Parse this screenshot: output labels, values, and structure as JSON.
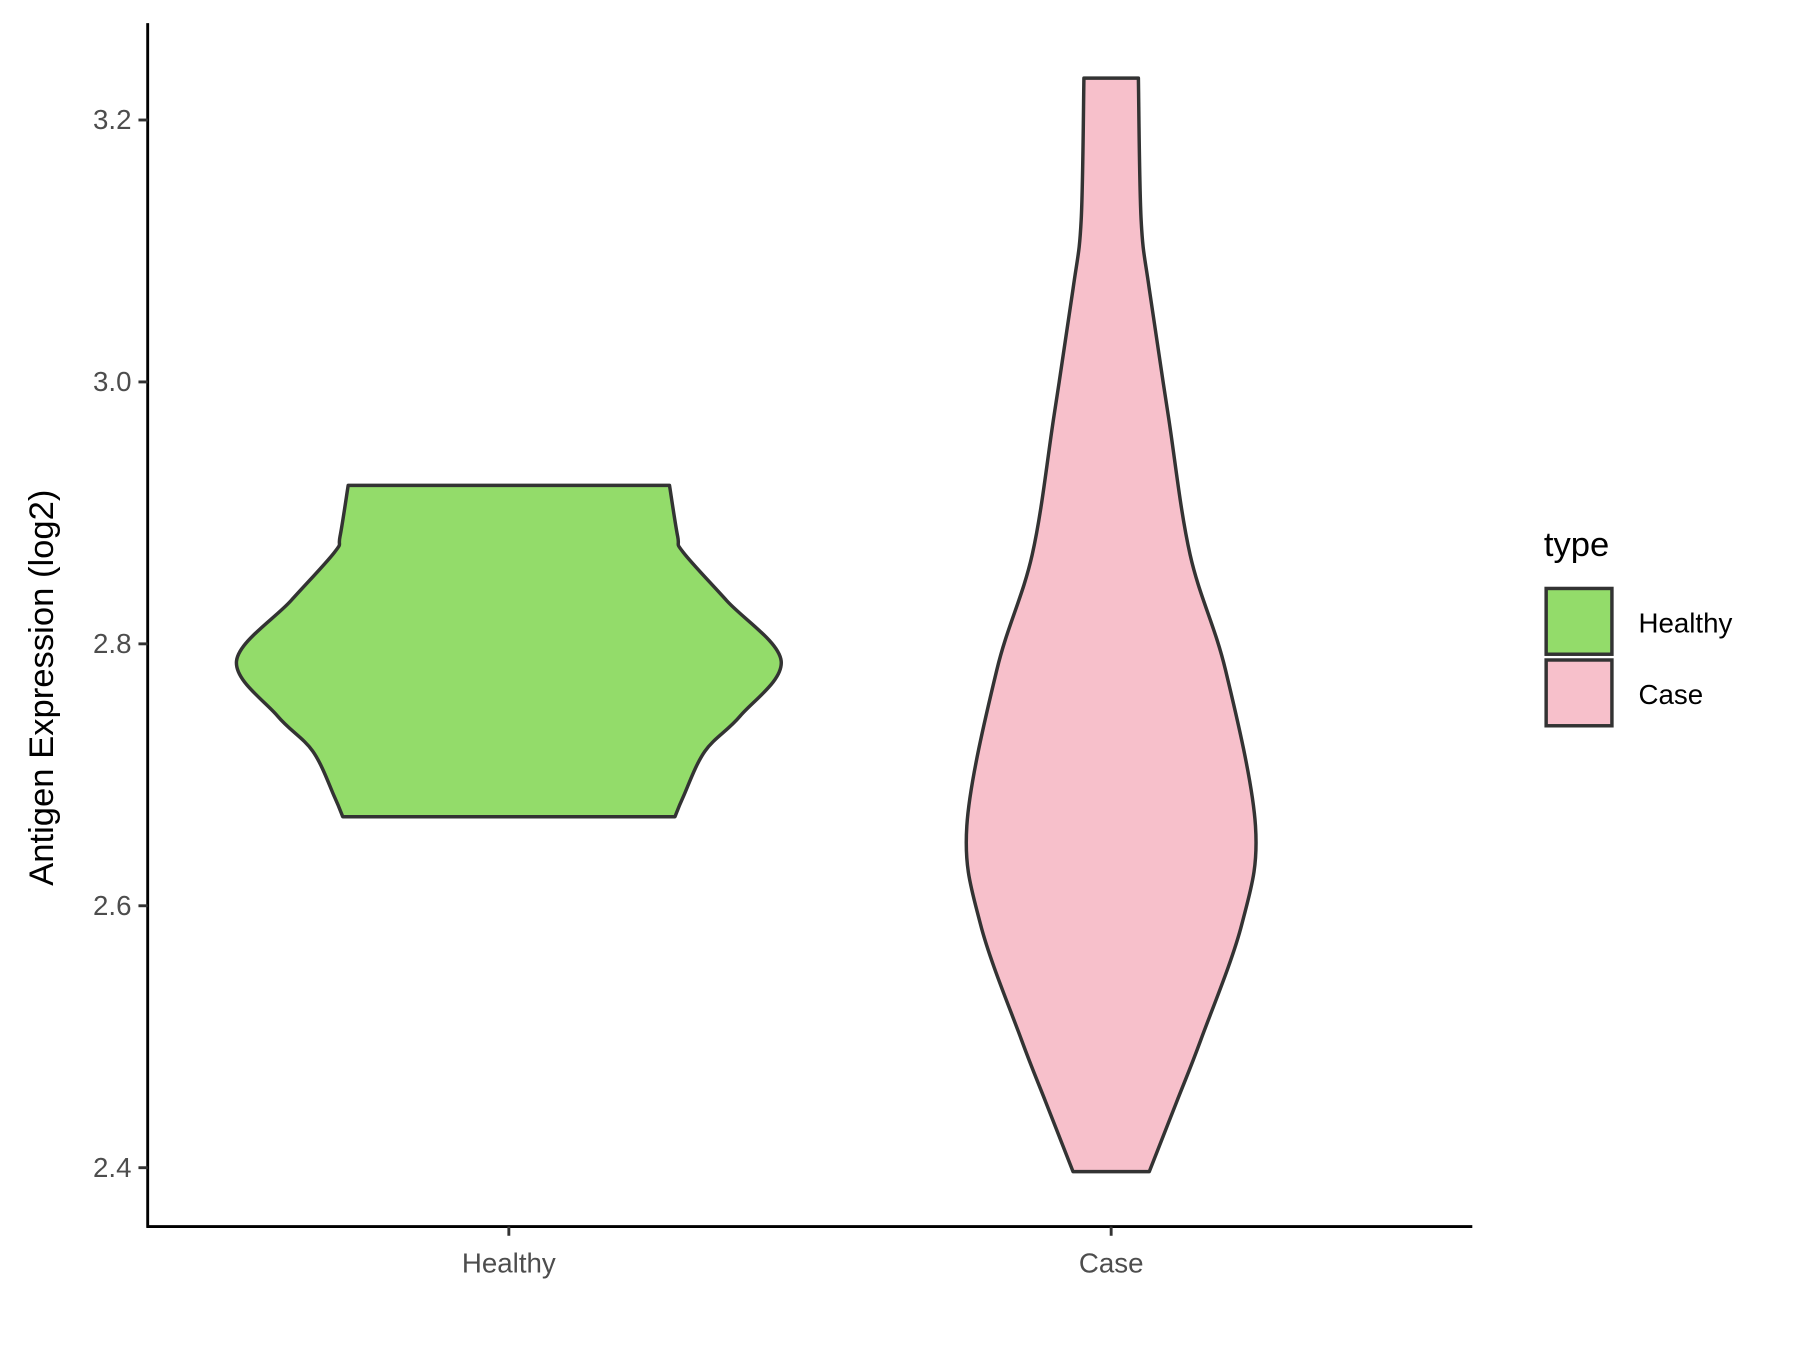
{
  "chart_data": {
    "type": "violin",
    "title": "",
    "xlabel": "",
    "ylabel": "Antigen Expression (log2)",
    "ylim": [
      2.355,
      3.275
    ],
    "yticks": [
      "2.4",
      "2.6",
      "2.8",
      "3.0",
      "3.2"
    ],
    "categories": [
      "Healthy",
      "Case"
    ],
    "grid": false,
    "legend": {
      "title": "type",
      "position": "right",
      "entries": [
        "Healthy",
        "Case"
      ]
    },
    "series": [
      {
        "name": "Healthy",
        "color": "#93DC6A",
        "min": 2.668,
        "max": 2.921,
        "profile": [
          [
            2.668,
            0.61
          ],
          [
            2.683,
            0.64
          ],
          [
            2.718,
            0.72
          ],
          [
            2.745,
            0.85
          ],
          [
            2.787,
            1.0
          ],
          [
            2.833,
            0.8
          ],
          [
            2.87,
            0.64
          ],
          [
            2.882,
            0.62
          ],
          [
            2.921,
            0.59
          ]
        ]
      },
      {
        "name": "Case",
        "color": "#F7C0CB",
        "min": 2.397,
        "max": 3.232,
        "profile": [
          [
            2.397,
            0.14
          ],
          [
            2.45,
            0.24
          ],
          [
            2.498,
            0.33
          ],
          [
            2.586,
            0.48
          ],
          [
            2.661,
            0.53
          ],
          [
            2.78,
            0.42
          ],
          [
            2.868,
            0.29
          ],
          [
            2.974,
            0.21
          ],
          [
            3.071,
            0.14
          ],
          [
            3.124,
            0.11
          ],
          [
            3.232,
            0.1
          ]
        ]
      }
    ],
    "outline_color": "#333333"
  }
}
